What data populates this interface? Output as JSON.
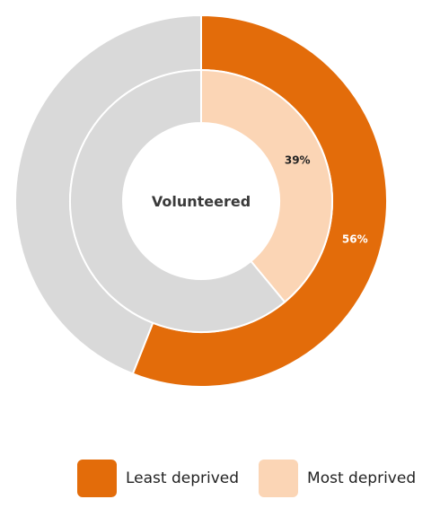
{
  "chart_data": {
    "type": "donut",
    "center_label": "Volunteered",
    "series": [
      {
        "name": "Least deprived",
        "value": 56,
        "value_label": "56%",
        "color": "#E36C0A",
        "label_color": "#ffffff",
        "remainder_color": "#D9D9D9"
      },
      {
        "name": "Most deprived",
        "value": 39,
        "value_label": "39%",
        "color": "#FBD5B5",
        "label_color": "#222222",
        "remainder_color": "#D9D9D9"
      }
    ],
    "legend": {
      "position": "bottom",
      "items": [
        {
          "label": "Least deprived",
          "color": "#E36C0A"
        },
        {
          "label": "Most deprived",
          "color": "#FBD5B5"
        }
      ]
    }
  }
}
